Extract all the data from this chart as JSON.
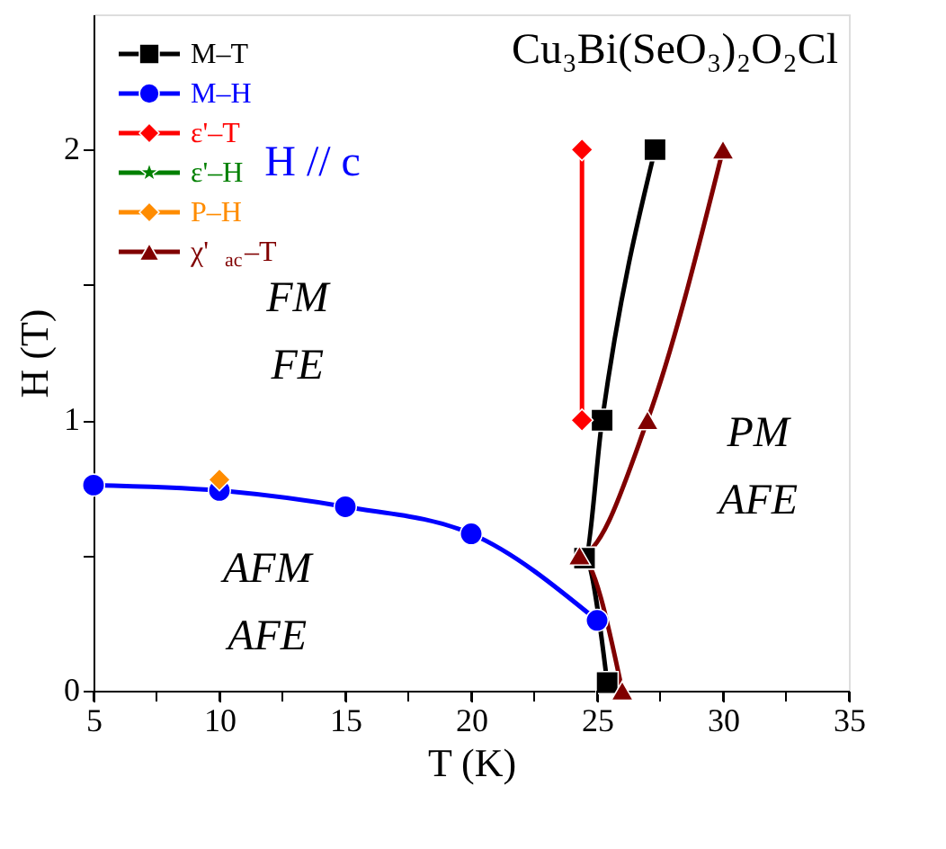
{
  "chart_data": {
    "type": "line",
    "title": "Cu₃Bi(SeO₃)₂O₂Cl",
    "xlabel": "T (K)",
    "ylabel": "H (T)",
    "xlim": [
      5,
      35
    ],
    "ylim": [
      0,
      2.5
    ],
    "xticks": [
      5,
      {
        "value": 7.5,
        "label": null
      },
      10,
      {
        "value": 12.5,
        "label": null
      },
      15,
      {
        "value": 17.5,
        "label": null
      },
      20,
      {
        "value": 22.5,
        "label": null
      },
      25,
      {
        "value": 27.5,
        "label": null
      },
      30,
      {
        "value": 32.5,
        "label": null
      },
      35
    ],
    "yticks": [
      0,
      {
        "value": 0.5,
        "label": null
      },
      1,
      {
        "value": 1.5,
        "label": null
      },
      2
    ],
    "grid": false,
    "legend": "top left",
    "series": [
      {
        "name": "M–T",
        "color": "#000000",
        "marker": "square",
        "x": [
          25.4,
          24.5,
          25.2,
          27.3
        ],
        "values": [
          0.03,
          0.49,
          1.0,
          2.0
        ]
      },
      {
        "name": "M–H",
        "color": "#0000ff",
        "marker": "circle",
        "x": [
          5,
          10,
          15,
          20,
          25
        ],
        "values": [
          0.76,
          0.74,
          0.68,
          0.58,
          0.26
        ]
      },
      {
        "name": "ε'–T",
        "color": "#ff0000",
        "marker": "diamond",
        "x": [
          24.4,
          24.4
        ],
        "values": [
          1.0,
          2.0
        ]
      },
      {
        "name": "ε'–H",
        "color": "#008000",
        "marker": "star"
      },
      {
        "name": "P–H",
        "color": "#ff8c00",
        "marker": "diamond",
        "x": [
          10
        ],
        "values": [
          0.78
        ]
      },
      {
        "name": "χ'$_{ac}$–T",
        "color": "#800000",
        "marker": "triangle",
        "x": [
          26.0,
          24.3,
          27.0,
          30.0
        ],
        "values": [
          0.0,
          0.5,
          1.0,
          2.0
        ]
      }
    ],
    "annotations": [
      "H // c",
      "FM",
      "FE",
      "PM",
      "AFE",
      "AFM",
      "AFE"
    ]
  }
}
